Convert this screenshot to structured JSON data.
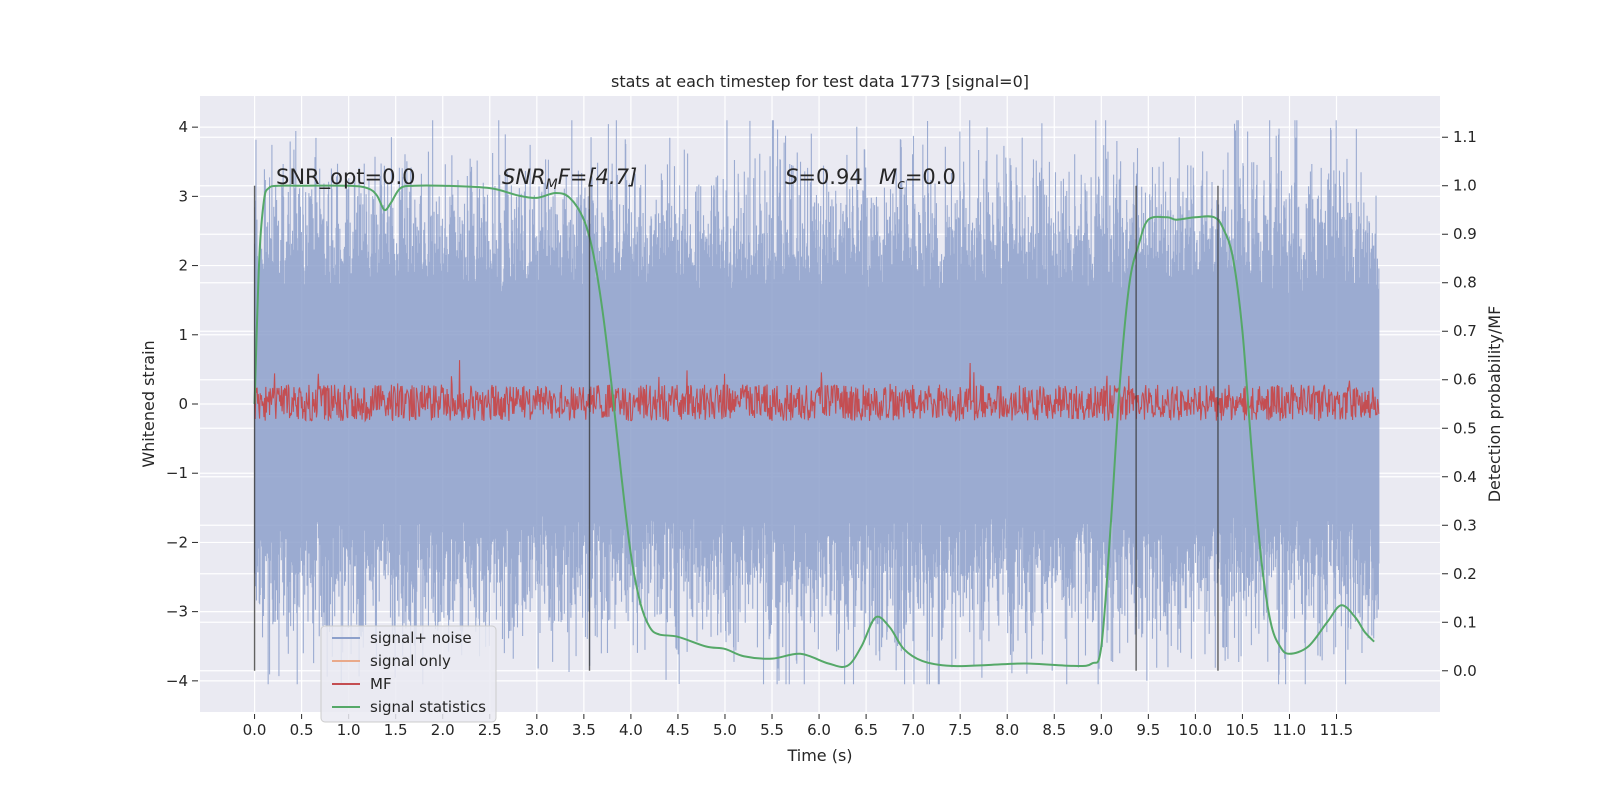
{
  "chart_data": {
    "type": "line",
    "title": "stats at each timestep for test data 1773 [signal=0]",
    "xlabel": "Time (s)",
    "ylabel": "Whitened strain",
    "y2label": "Detection probability/MF",
    "xlim": [
      -0.58,
      12.6
    ],
    "ylim": [
      -4.45,
      4.45
    ],
    "y2lim": [
      -0.085,
      1.185
    ],
    "xticks": [
      0.0,
      0.5,
      1.0,
      1.5,
      2.0,
      2.5,
      3.0,
      3.5,
      4.0,
      4.5,
      5.0,
      5.5,
      6.0,
      6.5,
      7.0,
      7.5,
      8.0,
      8.5,
      9.0,
      9.5,
      10.0,
      10.5,
      11.0,
      11.5
    ],
    "xtick_labels": [
      "0.0",
      "0.5",
      "1.0",
      "1.5",
      "2.0",
      "2.5",
      "3.0",
      "3.5",
      "4.0",
      "4.5",
      "5.0",
      "5.5",
      "6.0",
      "6.5",
      "7.0",
      "7.5",
      "8.0",
      "8.5",
      "9.0",
      "9.5",
      "10.0",
      "10.5",
      "11.0",
      "11.5"
    ],
    "yticks": [
      4,
      3,
      2,
      1,
      0,
      -1,
      -2,
      -3,
      -4
    ],
    "ytick_labels": [
      "4",
      "3",
      "2",
      "1",
      "0",
      "−1",
      "−2",
      "−3",
      "−4"
    ],
    "y2ticks": [
      1.1,
      1.0,
      0.9,
      0.8,
      0.7,
      0.6,
      0.5,
      0.4,
      0.3,
      0.2,
      0.1,
      0.0
    ],
    "y2tick_labels": [
      "1.1",
      "1.0",
      "0.9",
      "0.8",
      "0.7",
      "0.6",
      "0.5",
      "0.4",
      "0.3",
      "0.2",
      "0.1",
      "0.0"
    ],
    "grid": true,
    "legend_position": "lower-left",
    "legend": [
      {
        "label": "signal+ noise",
        "color": "#8da0cb"
      },
      {
        "label": "signal only",
        "color": "#e9a98a"
      },
      {
        "label": "MF",
        "color": "#c44e52"
      },
      {
        "label": "signal statistics",
        "color": "#55a868"
      }
    ],
    "annotations": {
      "snr_opt": "SNR_opt=0.0",
      "snr_mf_prefix": "SNR",
      "snr_mf_sub": "M",
      "snr_mf_suffix": "F=[4.7]",
      "s_var": "S",
      "s_value": "=0.94",
      "mc_var": "M",
      "mc_sub": "c",
      "mc_value": "=0.0"
    },
    "vertical_lines_x": [
      0.0,
      3.56,
      9.37,
      10.24
    ],
    "noise_series": {
      "name": "signal+ noise",
      "x_range": [
        0.0,
        11.95
      ],
      "envelope_y": [
        -4.05,
        4.1
      ],
      "color": "#8da0cb"
    },
    "mf_series": {
      "name": "MF",
      "x_range": [
        0.0,
        11.95
      ],
      "y2_range": [
        0.5,
        0.66
      ],
      "color": "#c44e52"
    },
    "signal_statistics": {
      "name": "signal statistics",
      "color": "#55a868",
      "x": [
        0.0,
        0.05,
        0.1,
        0.15,
        0.25,
        0.5,
        1.0,
        1.2,
        1.3,
        1.38,
        1.45,
        1.55,
        1.7,
        2.0,
        2.5,
        2.8,
        3.0,
        3.2,
        3.35,
        3.5,
        3.6,
        3.7,
        3.8,
        3.9,
        4.0,
        4.1,
        4.2,
        4.3,
        4.5,
        4.8,
        5.0,
        5.2,
        5.5,
        5.8,
        6.1,
        6.3,
        6.45,
        6.6,
        6.75,
        6.9,
        7.1,
        7.4,
        7.8,
        8.2,
        8.7,
        8.9,
        9.0,
        9.1,
        9.2,
        9.3,
        9.4,
        9.5,
        9.7,
        9.8,
        10.0,
        10.2,
        10.3,
        10.4,
        10.5,
        10.6,
        10.7,
        10.8,
        10.9,
        11.0,
        11.2,
        11.4,
        11.55,
        11.7,
        11.8,
        11.9
      ],
      "y2": [
        0.55,
        0.85,
        0.97,
        0.995,
        1.0,
        1.0,
        1.0,
        0.995,
        0.98,
        0.95,
        0.965,
        0.995,
        1.0,
        1.0,
        0.995,
        0.98,
        0.975,
        0.985,
        0.975,
        0.93,
        0.86,
        0.74,
        0.58,
        0.4,
        0.24,
        0.14,
        0.09,
        0.075,
        0.07,
        0.05,
        0.045,
        0.03,
        0.025,
        0.035,
        0.015,
        0.01,
        0.05,
        0.11,
        0.09,
        0.045,
        0.02,
        0.01,
        0.012,
        0.015,
        0.01,
        0.015,
        0.05,
        0.3,
        0.6,
        0.8,
        0.88,
        0.93,
        0.935,
        0.93,
        0.935,
        0.935,
        0.91,
        0.85,
        0.7,
        0.45,
        0.23,
        0.1,
        0.05,
        0.035,
        0.05,
        0.1,
        0.135,
        0.11,
        0.08,
        0.06
      ]
    }
  }
}
